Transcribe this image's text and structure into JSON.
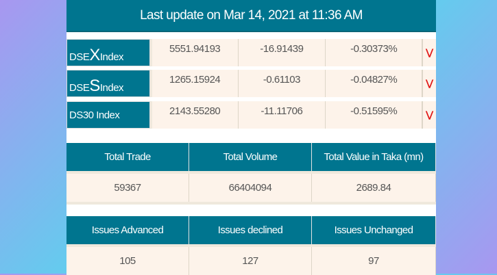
{
  "header": {
    "title": "Last update on Mar 14, 2021 at 11:36 AM"
  },
  "indices": [
    {
      "prefix": "DSE",
      "big": "X",
      "suffix": " Index",
      "value": "5551.94193",
      "change": "-16.91439",
      "percent": "-0.30373%",
      "trend": "down"
    },
    {
      "prefix": "DSE",
      "big": "S",
      "suffix": " Index",
      "value": "1265.15924",
      "change": "-0.61103",
      "percent": "-0.04827%",
      "trend": "down"
    },
    {
      "prefix": "DS30 Index",
      "big": "",
      "suffix": "",
      "value": "2143.55280",
      "change": "-11.11706",
      "percent": "-0.51595%",
      "trend": "down"
    }
  ],
  "trade": {
    "headers": [
      "Total Trade",
      "Total Volume",
      "Total Value in Taka (mn)"
    ],
    "values": [
      "59367",
      "66404094",
      "2689.84"
    ]
  },
  "issues": {
    "headers": [
      "Issues Advanced",
      "Issues declined",
      "Issues Unchanged"
    ],
    "values": [
      "105",
      "127",
      "97"
    ]
  },
  "icons": {
    "trend_down": "double-chevron-down-icon"
  },
  "colors": {
    "accent": "#00758f",
    "cell_bg": "#fdf3ea",
    "down": "#e01515"
  }
}
